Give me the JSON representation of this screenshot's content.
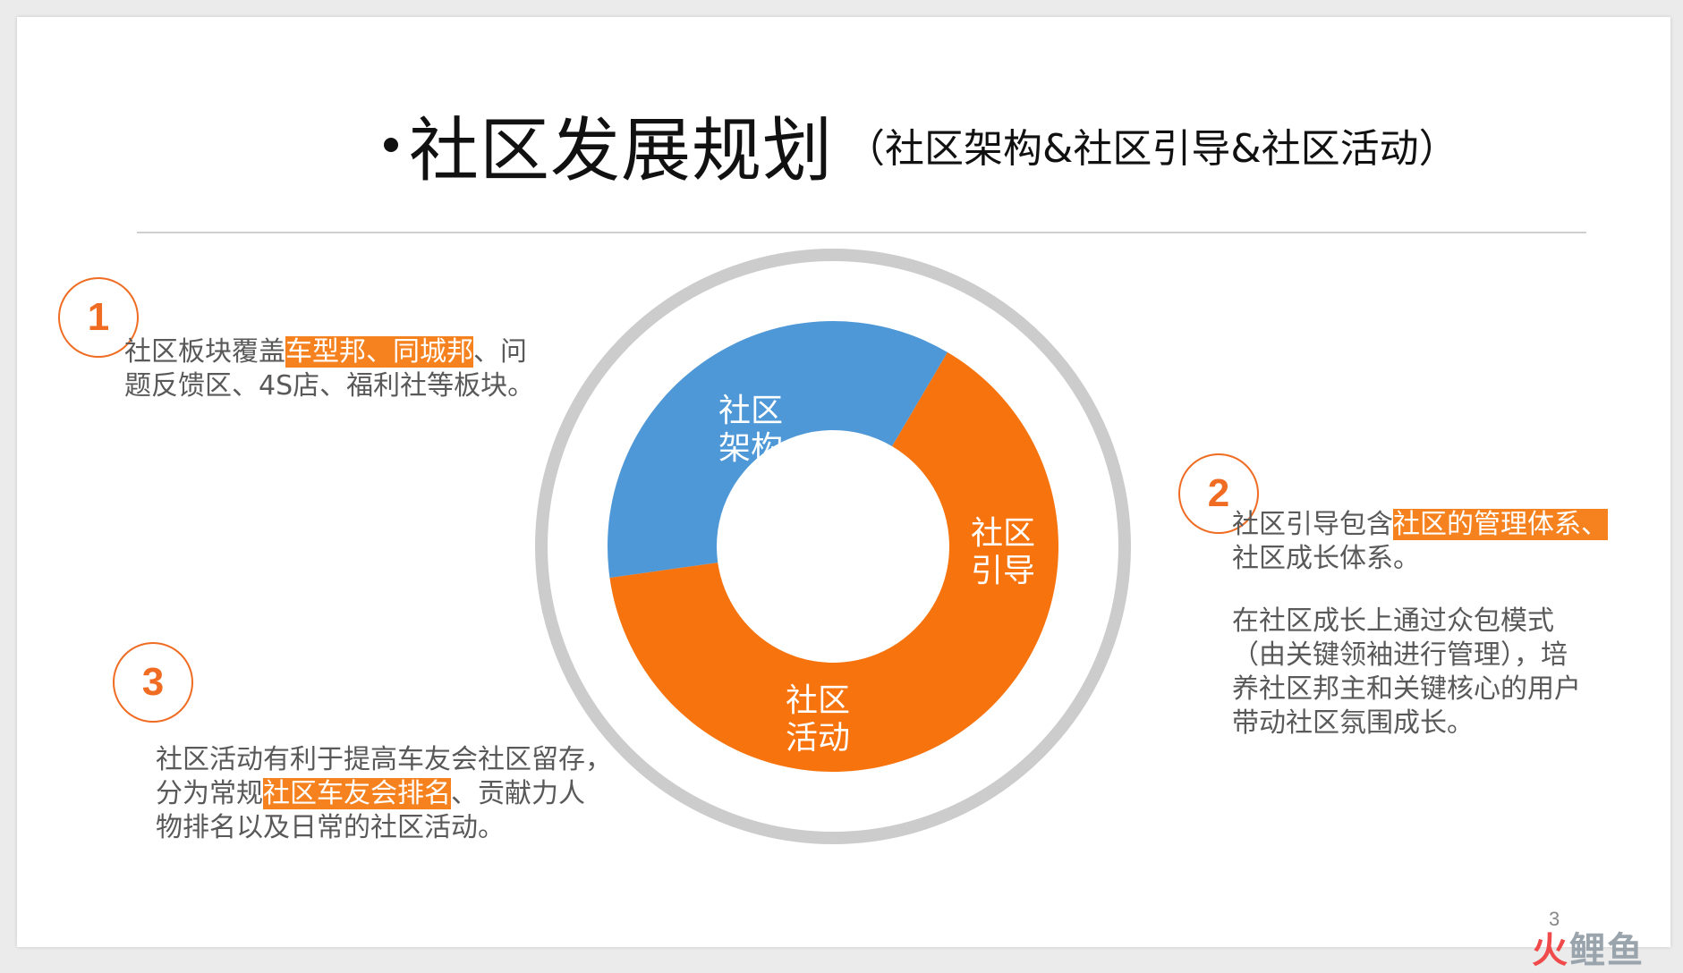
{
  "title": {
    "main": "社区发展规划",
    "sub": "（社区架构&社区引导&社区活动）"
  },
  "sections": [
    {
      "number": "1",
      "lines": [
        [
          {
            "t": "社区板块覆盖"
          },
          {
            "t": "车型邦、同城邦",
            "hl": true
          },
          {
            "t": "、问"
          }
        ],
        [
          {
            "t": "题反馈区、4S店、福利社等板块。"
          }
        ]
      ]
    },
    {
      "number": "2",
      "lines": [
        [
          {
            "t": "社区引导包含"
          },
          {
            "t": "社区的管理体系、",
            "hl": true
          }
        ],
        [
          {
            "t": "社区成长体系。"
          }
        ]
      ],
      "extra_lines": [
        "在社区成长上通过众包模式",
        "（由关键领袖进行管理），培",
        "养社区邦主和关键核心的用户",
        "带动社区氛围成长。"
      ]
    },
    {
      "number": "3",
      "lines": [
        [
          {
            "t": "社区活动有利于提高车友会社区留存，"
          }
        ],
        [
          {
            "t": "分为常规"
          },
          {
            "t": "社区车友会排名",
            "hl": true
          },
          {
            "t": "、贡献力人"
          }
        ],
        [
          {
            "t": "物排名以及日常的社区活动。"
          }
        ]
      ]
    }
  ],
  "donut": {
    "segments": [
      {
        "label_lines": [
          "社区",
          "架构"
        ],
        "color": "#4e98d7",
        "fraction": 0.357
      },
      {
        "label_lines": [
          "社区",
          "引导"
        ],
        "color": "#f7730e",
        "fraction": 0.643,
        "_combined_with_next": true
      },
      {
        "label_lines": [
          "社区",
          "活动"
        ],
        "color": "#f7730e",
        "fraction": 0
      }
    ],
    "outer_ring_color": "#cccccc"
  },
  "colors": {
    "accent": "#ef6c22",
    "highlight": "#f5821f",
    "body_text": "#595959"
  },
  "page_number": "3",
  "watermark": {
    "part1": "火",
    "part2": "鲤鱼"
  }
}
